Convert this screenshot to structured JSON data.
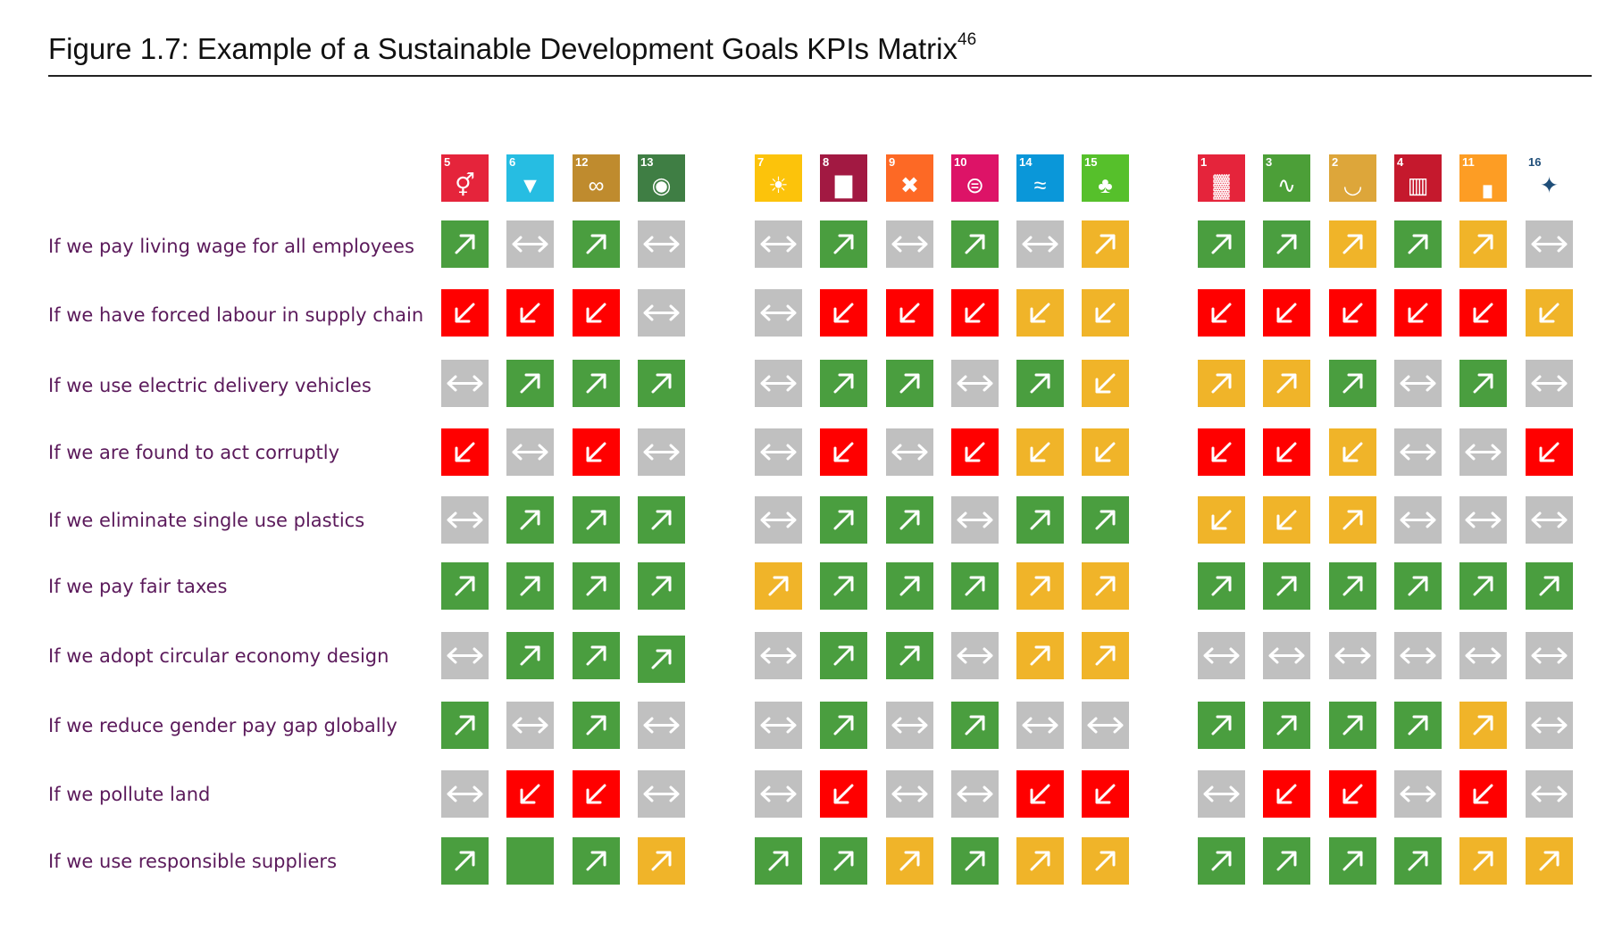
{
  "figure": {
    "title": "Figure 1.7: Example of a Sustainable Development Goals KPIs Matrix",
    "title_superscript": "46"
  },
  "colors": {
    "positive": "#4a9e3f",
    "negative": "#ff0000",
    "caution": "#f0b429",
    "neutral": "#c0c0c0",
    "label_text": "#5b1a5b"
  },
  "legend_codes": {
    "P": "green up-arrow",
    "N": "red down-arrow",
    "C": "amber down-arrow",
    "A": "amber up-arrow",
    "X": "grey two-way arrow",
    "G": "green blank"
  },
  "column_groups": [
    {
      "goals": [
        5,
        6,
        12,
        13
      ]
    },
    {
      "goals": [
        7,
        8,
        9,
        10,
        14,
        15
      ]
    },
    {
      "goals": [
        1,
        3,
        2,
        4,
        11,
        16
      ]
    }
  ],
  "goals": [
    {
      "number": "5",
      "color": "#e5243b",
      "icon": "gender-symbol-icon"
    },
    {
      "number": "6",
      "color": "#26bde2",
      "icon": "water-drop-icon"
    },
    {
      "number": "12",
      "color": "#bf8b2e",
      "icon": "infinity-icon"
    },
    {
      "number": "13",
      "color": "#3f7e44",
      "icon": "eye-globe-icon"
    },
    {
      "number": "7",
      "color": "#fcc30b",
      "icon": "sun-icon"
    },
    {
      "number": "8",
      "color": "#a21942",
      "icon": "bar-chart-icon"
    },
    {
      "number": "9",
      "color": "#fd6925",
      "icon": "cube-icon"
    },
    {
      "number": "10",
      "color": "#dd1367",
      "icon": "equal-icon"
    },
    {
      "number": "14",
      "color": "#0a97d9",
      "icon": "fish-icon"
    },
    {
      "number": "15",
      "color": "#56c02b",
      "icon": "tree-icon"
    },
    {
      "number": "1",
      "color": "#e5243b",
      "icon": "family-icon"
    },
    {
      "number": "3",
      "color": "#4c9f38",
      "icon": "heartbeat-icon"
    },
    {
      "number": "2",
      "color": "#dda63a",
      "icon": "bowl-icon"
    },
    {
      "number": "4",
      "color": "#c5192d",
      "icon": "book-icon"
    },
    {
      "number": "11",
      "color": "#fd9d24",
      "icon": "buildings-icon"
    },
    {
      "number": "16",
      "color": "#ffffff",
      "icon": "dove-icon"
    }
  ],
  "rows": [
    {
      "label": "If we pay living wage for all employees",
      "cells": [
        "P",
        "X",
        "P",
        "X",
        "X",
        "P",
        "X",
        "P",
        "X",
        "A",
        "P",
        "P",
        "A",
        "P",
        "A",
        "X"
      ]
    },
    {
      "label": "If we have forced labour in supply chain",
      "cells": [
        "N",
        "N",
        "N",
        "X",
        "X",
        "N",
        "N",
        "N",
        "C",
        "C",
        "N",
        "N",
        "N",
        "N",
        "N",
        "C"
      ]
    },
    {
      "label": "If we use electric delivery vehicles",
      "cells": [
        "X",
        "P",
        "P",
        "P",
        "X",
        "P",
        "P",
        "X",
        "P",
        "C",
        "A",
        "A",
        "P",
        "X",
        "P",
        "X"
      ]
    },
    {
      "label": "If we are found to act corruptly",
      "cells": [
        "N",
        "X",
        "N",
        "X",
        "X",
        "N",
        "X",
        "N",
        "C",
        "C",
        "N",
        "N",
        "C",
        "X",
        "X",
        "N"
      ]
    },
    {
      "label": "If we eliminate single use plastics",
      "cells": [
        "X",
        "P",
        "P",
        "P",
        "X",
        "P",
        "P",
        "X",
        "P",
        "P",
        "C",
        "C",
        "A",
        "X",
        "X",
        "X"
      ]
    },
    {
      "label": "If we pay fair taxes",
      "cells": [
        "P",
        "P",
        "P",
        "P",
        "A",
        "P",
        "P",
        "P",
        "A",
        "A",
        "P",
        "P",
        "P",
        "P",
        "P",
        "P"
      ]
    },
    {
      "label": "If we adopt circular economy design",
      "cells": [
        "X",
        "P",
        "P",
        "P",
        "X",
        "P",
        "P",
        "X",
        "A",
        "A",
        "X",
        "X",
        "X",
        "X",
        "X",
        "X"
      ]
    },
    {
      "label": "If we reduce gender pay gap globally",
      "cells": [
        "P",
        "X",
        "P",
        "X",
        "X",
        "P",
        "X",
        "P",
        "X",
        "X",
        "P",
        "P",
        "P",
        "P",
        "A",
        "X"
      ]
    },
    {
      "label": "If we pollute land",
      "cells": [
        "X",
        "N",
        "N",
        "X",
        "X",
        "N",
        "X",
        "X",
        "N",
        "N",
        "X",
        "N",
        "N",
        "X",
        "N",
        "X"
      ]
    },
    {
      "label": "If we use responsible suppliers",
      "cells": [
        "P",
        "G",
        "P",
        "A",
        "P",
        "P",
        "A",
        "P",
        "A",
        "A",
        "P",
        "P",
        "P",
        "P",
        "A",
        "A"
      ]
    }
  ]
}
